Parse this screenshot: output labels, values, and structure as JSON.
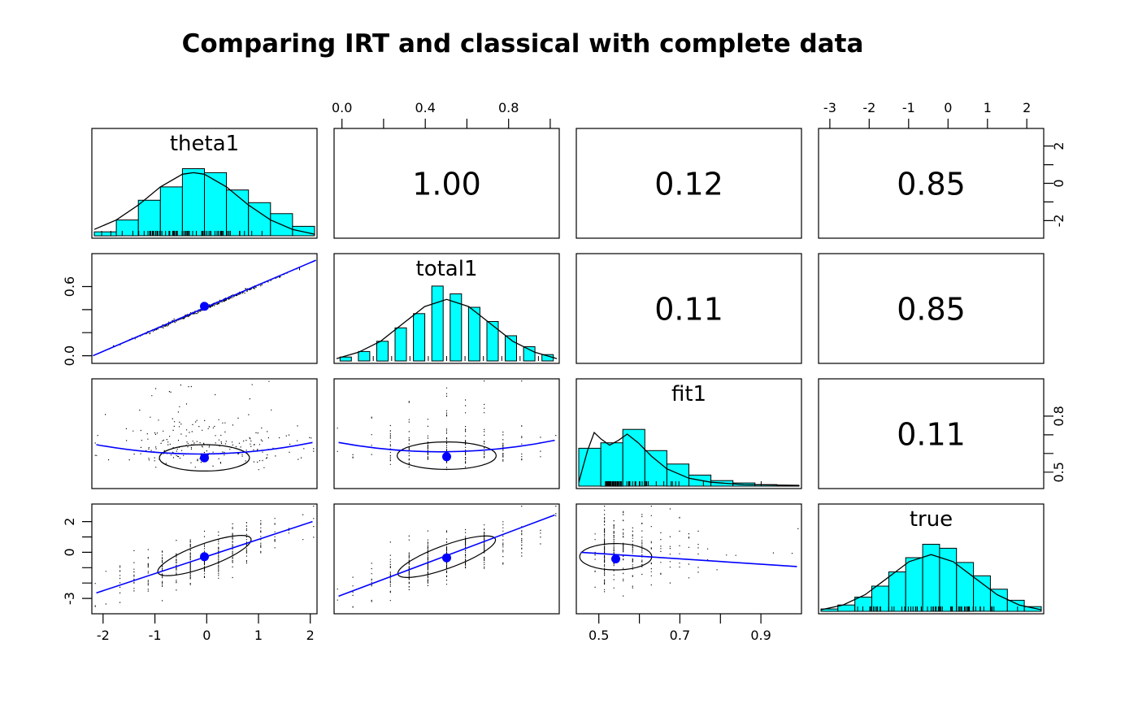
{
  "title": "Comparing IRT and classical with complete data",
  "chart_data": {
    "type": "scatter",
    "subtype": "scatterplot-matrix-pairs-panels",
    "title": "Comparing IRT and classical with complete data",
    "variables": [
      "theta1",
      "total1",
      "fit1",
      "true"
    ],
    "colors": {
      "hist_fill": "#00ffff",
      "line": "#0000ff",
      "dot": "#0000ff",
      "points": "#000000",
      "ellipse": "#000000",
      "border": "#000000"
    },
    "correlations": [
      {
        "x": "theta1",
        "y": "total1",
        "r": "1.00",
        "row": 0,
        "col": 1
      },
      {
        "x": "theta1",
        "y": "fit1",
        "r": "0.12",
        "row": 0,
        "col": 2
      },
      {
        "x": "theta1",
        "y": "true",
        "r": "0.85",
        "row": 0,
        "col": 3
      },
      {
        "x": "total1",
        "y": "fit1",
        "r": "0.11",
        "row": 1,
        "col": 2
      },
      {
        "x": "total1",
        "y": "true",
        "r": "0.85",
        "row": 1,
        "col": 3
      },
      {
        "x": "fit1",
        "y": "true",
        "r": "0.11",
        "row": 2,
        "col": 3
      }
    ],
    "histograms": [
      {
        "row": 0,
        "col": 0,
        "label": "theta1",
        "gap": 0,
        "bars": [
          0.05,
          0.2,
          0.45,
          0.62,
          0.85,
          0.8,
          0.58,
          0.42,
          0.28,
          0.12
        ],
        "curve": [
          [
            0,
            0.08
          ],
          [
            0.1,
            0.2
          ],
          [
            0.2,
            0.39
          ],
          [
            0.3,
            0.62
          ],
          [
            0.4,
            0.78
          ],
          [
            0.45,
            0.8
          ],
          [
            0.5,
            0.78
          ],
          [
            0.6,
            0.62
          ],
          [
            0.7,
            0.39
          ],
          [
            0.8,
            0.2
          ],
          [
            0.9,
            0.08
          ],
          [
            1,
            0.02
          ]
        ],
        "rug": {
          "n": 70,
          "seed": 11,
          "dist": "normal",
          "mu": 0.45,
          "sig": 0.17,
          "quant": 0
        }
      },
      {
        "row": 1,
        "col": 1,
        "label": "total1",
        "gap": 0.38,
        "bars": [
          0.05,
          0.12,
          0.25,
          0.42,
          0.6,
          0.95,
          0.85,
          0.68,
          0.5,
          0.32,
          0.18,
          0.08
        ],
        "curve": [
          [
            0,
            0.03
          ],
          [
            0.1,
            0.11
          ],
          [
            0.2,
            0.25
          ],
          [
            0.3,
            0.47
          ],
          [
            0.4,
            0.69
          ],
          [
            0.5,
            0.78
          ],
          [
            0.6,
            0.69
          ],
          [
            0.7,
            0.47
          ],
          [
            0.8,
            0.25
          ],
          [
            0.9,
            0.11
          ],
          [
            1,
            0.03
          ]
        ],
        "rug": {
          "n": 60,
          "seed": 12,
          "dist": "normal",
          "mu": 0.5,
          "sig": 0.16,
          "quant": 12
        }
      },
      {
        "row": 2,
        "col": 2,
        "label": "fit1",
        "gap": 0,
        "bars": [
          0.48,
          0.55,
          0.72,
          0.45,
          0.28,
          0.14,
          0.07,
          0.04,
          0.02,
          0.01
        ],
        "curve": [
          [
            0,
            0.05
          ],
          [
            0.04,
            0.45
          ],
          [
            0.07,
            0.68
          ],
          [
            0.1,
            0.6
          ],
          [
            0.14,
            0.52
          ],
          [
            0.18,
            0.58
          ],
          [
            0.22,
            0.66
          ],
          [
            0.27,
            0.55
          ],
          [
            0.33,
            0.38
          ],
          [
            0.4,
            0.22
          ],
          [
            0.5,
            0.1
          ],
          [
            0.6,
            0.05
          ],
          [
            0.75,
            0.02
          ],
          [
            1,
            0.01
          ]
        ],
        "rug": {
          "n": 70,
          "seed": 13,
          "dist": "exp",
          "mu": 0.12,
          "sig": 0.13,
          "quant": 0
        }
      },
      {
        "row": 3,
        "col": 3,
        "label": "true",
        "gap": 0,
        "bars": [
          0.03,
          0.08,
          0.18,
          0.32,
          0.5,
          0.68,
          0.85,
          0.8,
          0.62,
          0.45,
          0.28,
          0.14,
          0.06
        ],
        "curve": [
          [
            0,
            0.02
          ],
          [
            0.1,
            0.08
          ],
          [
            0.2,
            0.21
          ],
          [
            0.3,
            0.42
          ],
          [
            0.4,
            0.63
          ],
          [
            0.5,
            0.72
          ],
          [
            0.6,
            0.63
          ],
          [
            0.7,
            0.42
          ],
          [
            0.8,
            0.21
          ],
          [
            0.9,
            0.08
          ],
          [
            1,
            0.02
          ]
        ],
        "rug": {
          "n": 60,
          "seed": 14,
          "dist": "normal",
          "mu": 0.5,
          "sig": 0.17,
          "quant": 0
        }
      }
    ],
    "scatter_panels": [
      {
        "row": 1,
        "col": 0,
        "xvar": "theta1",
        "yvar": "total1",
        "kind": "tightline",
        "seed": 21,
        "n": 420,
        "tsig": 0.2,
        "jitter": 0.007,
        "pts": [
          [
            0.06,
            0.88
          ],
          [
            0.94,
            0.11
          ]
        ],
        "line": [
          [
            0.005,
            0.93
          ],
          [
            0.995,
            0.06
          ]
        ],
        "dot": [
          0.5,
          0.48
        ]
      },
      {
        "row": 2,
        "col": 0,
        "xvar": "theta1",
        "yvar": "fit1",
        "kind": "cloud",
        "seed": 31,
        "n": 230,
        "x": {
          "dist": "normal",
          "mu": 0.5,
          "sig": 0.2,
          "quant": 0
        },
        "y": {
          "mode": "skewup",
          "base": 0.74,
          "scale": 0.16,
          "noise": 0.05
        },
        "ellipse": {
          "cx": 0.5,
          "cy": 0.72,
          "rx": 0.2,
          "ry": 0.12,
          "angle": 0
        },
        "line": [
          [
            0.02,
            0.6
          ],
          [
            0.5,
            0.78
          ],
          [
            0.98,
            0.58
          ]
        ],
        "dot": [
          0.5,
          0.72
        ]
      },
      {
        "row": 2,
        "col": 1,
        "xvar": "total1",
        "yvar": "fit1",
        "kind": "cloud",
        "seed": 32,
        "n": 230,
        "x": {
          "dist": "normal",
          "mu": 0.5,
          "sig": 0.18,
          "quant": 12
        },
        "y": {
          "mode": "skewup",
          "base": 0.73,
          "scale": 0.15,
          "noise": 0.05
        },
        "ellipse": {
          "cx": 0.5,
          "cy": 0.7,
          "rx": 0.22,
          "ry": 0.125,
          "angle": 0
        },
        "line": [
          [
            0.02,
            0.58
          ],
          [
            0.5,
            0.76
          ],
          [
            0.98,
            0.56
          ]
        ],
        "dot": [
          0.5,
          0.71
        ]
      },
      {
        "row": 3,
        "col": 0,
        "xvar": "theta1",
        "yvar": "true",
        "kind": "cloud",
        "seed": 41,
        "n": 380,
        "x": {
          "dist": "normal",
          "mu": 0.5,
          "sig": 0.19,
          "quant": 16
        },
        "y": {
          "mode": "linear",
          "base": 0.49,
          "slope": -0.63,
          "noise": 0.105
        },
        "ellipse": {
          "cx": 0.5,
          "cy": 0.47,
          "rx": 0.22,
          "ry": 0.105,
          "angle": -20
        },
        "line": [
          [
            0.02,
            0.81
          ],
          [
            0.98,
            0.16
          ]
        ],
        "dot": [
          0.5,
          0.48
        ]
      },
      {
        "row": 3,
        "col": 1,
        "xvar": "total1",
        "yvar": "true",
        "kind": "cloud",
        "seed": 42,
        "n": 400,
        "x": {
          "dist": "normal",
          "mu": 0.5,
          "sig": 0.18,
          "quant": 12
        },
        "y": {
          "mode": "linear",
          "base": 0.49,
          "slope": -0.66,
          "noise": 0.1
        },
        "ellipse": {
          "cx": 0.5,
          "cy": 0.48,
          "rx": 0.23,
          "ry": 0.105,
          "angle": -20
        },
        "line": [
          [
            0.02,
            0.84
          ],
          [
            0.98,
            0.1
          ]
        ],
        "dot": [
          0.5,
          0.49
        ]
      },
      {
        "row": 3,
        "col": 2,
        "xvar": "fit1",
        "yvar": "true",
        "kind": "cloud",
        "seed": 43,
        "n": 320,
        "x": {
          "dist": "exp",
          "min": 0.1,
          "scale": 0.12,
          "quant": 24
        },
        "y": {
          "mode": "linear",
          "base": 0.44,
          "slope": 0.1,
          "noise": 0.17
        },
        "ellipse": {
          "cx": 0.175,
          "cy": 0.48,
          "rx": 0.16,
          "ry": 0.12,
          "angle": 0
        },
        "line": [
          [
            0.02,
            0.44
          ],
          [
            0.98,
            0.57
          ]
        ],
        "dot": [
          0.175,
          0.5
        ]
      }
    ],
    "axes": [
      {
        "side": "top",
        "col": 1,
        "ticks": [
          [
            0.035,
            "0.0"
          ],
          [
            0.22,
            ""
          ],
          [
            0.405,
            "0.4"
          ],
          [
            0.59,
            ""
          ],
          [
            0.775,
            "0.8"
          ],
          [
            0.96,
            ""
          ]
        ]
      },
      {
        "side": "top",
        "col": 3,
        "ticks": [
          [
            0.05,
            "-3"
          ],
          [
            0.225,
            "-2"
          ],
          [
            0.4,
            "-1"
          ],
          [
            0.575,
            "0"
          ],
          [
            0.75,
            "1"
          ],
          [
            0.925,
            "2"
          ]
        ]
      },
      {
        "side": "right",
        "row": 0,
        "ticks": [
          [
            0.16,
            "2"
          ],
          [
            0.33,
            ""
          ],
          [
            0.5,
            "0"
          ],
          [
            0.67,
            ""
          ],
          [
            0.84,
            "-2"
          ]
        ]
      },
      {
        "side": "left",
        "row": 1,
        "ticks": [
          [
            0.3,
            "0.6"
          ],
          [
            0.51,
            ""
          ],
          [
            0.72,
            ""
          ],
          [
            0.93,
            "0.0"
          ]
        ]
      },
      {
        "side": "right",
        "row": 2,
        "ticks": [
          [
            0.34,
            "0.8"
          ],
          [
            0.51,
            ""
          ],
          [
            0.68,
            ""
          ],
          [
            0.85,
            "0.5"
          ]
        ]
      },
      {
        "side": "left",
        "row": 3,
        "ticks": [
          [
            0.16,
            "2"
          ],
          [
            0.3,
            ""
          ],
          [
            0.44,
            "0"
          ],
          [
            0.58,
            ""
          ],
          [
            0.72,
            ""
          ],
          [
            0.86,
            "-3"
          ]
        ]
      },
      {
        "side": "bottom",
        "col": 0,
        "ticks": [
          [
            0.05,
            "-2"
          ],
          [
            0.28,
            "-1"
          ],
          [
            0.51,
            "0"
          ],
          [
            0.74,
            "1"
          ],
          [
            0.97,
            "2"
          ]
        ]
      },
      {
        "side": "bottom",
        "col": 2,
        "ticks": [
          [
            0.1,
            "0.5"
          ],
          [
            0.28,
            ""
          ],
          [
            0.46,
            "0.7"
          ],
          [
            0.64,
            ""
          ],
          [
            0.82,
            "0.9"
          ]
        ]
      }
    ]
  }
}
